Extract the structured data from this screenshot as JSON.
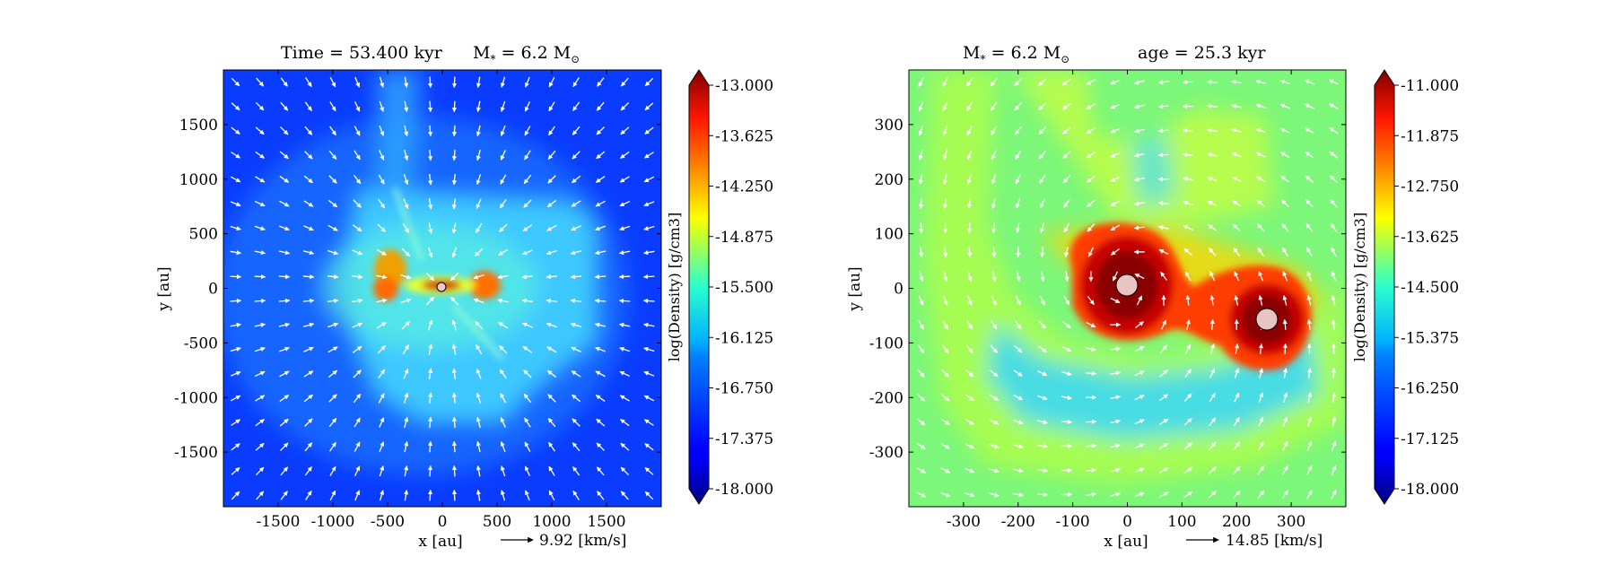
{
  "chart_data": [
    {
      "type": "heatmap",
      "title_left": "Time = 53.400  kyr",
      "title_right": "M$_*$ = 6.2 M$_\\odot$",
      "xlabel": "x [au]",
      "ylabel": "y [au]",
      "xlim": [
        -2000,
        2000
      ],
      "ylim": [
        -2000,
        2000
      ],
      "x_ticks": [
        "-1500",
        "-1000",
        "-500",
        "0",
        "500",
        "1000",
        "1500"
      ],
      "y_ticks": [
        "1500",
        "1000",
        "500",
        "0",
        "-500",
        "-1000",
        "-1500"
      ],
      "colorbar_label": "log(Density) [g/cm3]",
      "colorbar_range": [
        -18.0,
        -13.0
      ],
      "colorbar_ticks": [
        "-13.000",
        "-13.625",
        "-14.250",
        "-14.875",
        "-15.500",
        "-16.125",
        "-16.750",
        "-17.375",
        "-18.000"
      ],
      "quiver_key": "9.92 [km/s]",
      "colormap": "jet",
      "sinks": [
        {
          "x": 0,
          "y": 0
        }
      ]
    },
    {
      "type": "heatmap",
      "title_left": "M$_*$ = 6.2 M$_\\odot$",
      "title_right": "age = 25.3 kyr",
      "xlabel": "x [au]",
      "ylabel": "y [au]",
      "xlim": [
        -400,
        400
      ],
      "ylim": [
        -400,
        400
      ],
      "x_ticks": [
        "-300",
        "-200",
        "-100",
        "0",
        "100",
        "200",
        "300"
      ],
      "y_ticks": [
        "300",
        "200",
        "100",
        "0",
        "-100",
        "-200",
        "-300"
      ],
      "colorbar_label": "log(Density) [g/cm3]",
      "colorbar_range": [
        -18.0,
        -11.0
      ],
      "colorbar_ticks": [
        "-11.000",
        "-11.875",
        "-12.750",
        "-13.625",
        "-14.500",
        "-15.375",
        "-16.250",
        "-17.125",
        "-18.000"
      ],
      "quiver_key": "14.85 [km/s]",
      "colormap": "jet",
      "sinks": [
        {
          "x": -5,
          "y": 0
        },
        {
          "x": 255,
          "y": -65
        }
      ]
    }
  ],
  "panels": [
    {
      "title_a": "Time = 53.400  kyr",
      "title_b_prefix": "M",
      "title_b_sub": "*",
      "title_b_mid": " = 6.2 M",
      "title_b_sun": "⊙"
    },
    {
      "title_a_prefix": "M",
      "title_a_sub": "*",
      "title_a_mid": " = 6.2 M",
      "title_a_sun": "⊙",
      "title_b": "age = 25.3 kyr"
    }
  ]
}
